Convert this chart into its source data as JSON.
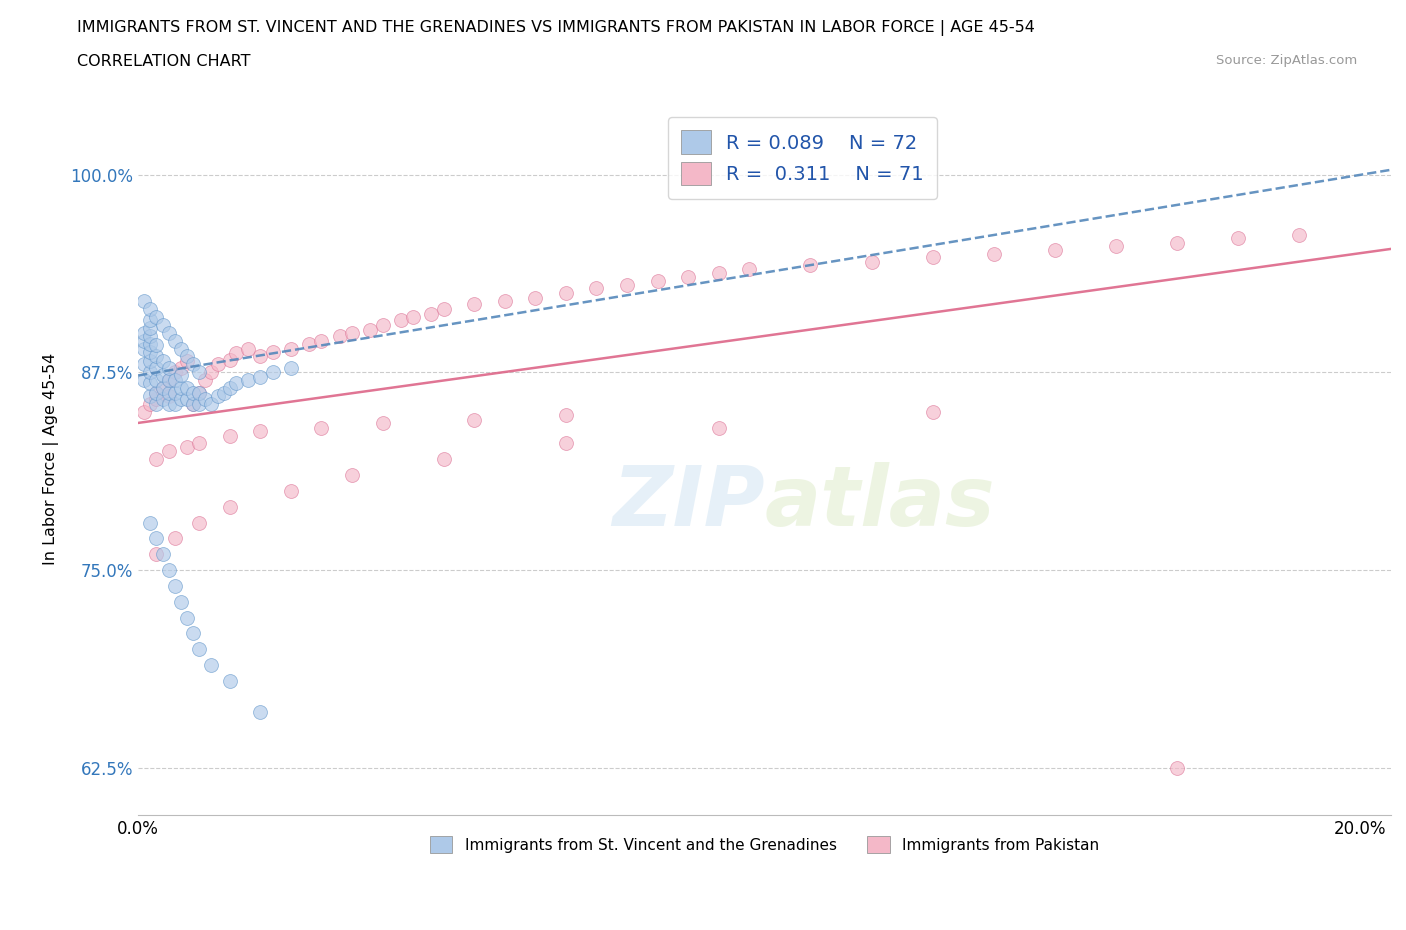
{
  "title_line1": "IMMIGRANTS FROM ST. VINCENT AND THE GRENADINES VS IMMIGRANTS FROM PAKISTAN IN LABOR FORCE | AGE 45-54",
  "title_line2": "CORRELATION CHART",
  "source_text": "Source: ZipAtlas.com",
  "ylabel": "In Labor Force | Age 45-54",
  "xlim": [
    0.0,
    0.205
  ],
  "ylim": [
    0.595,
    1.045
  ],
  "xticks": [
    0.0,
    0.025,
    0.05,
    0.075,
    0.1,
    0.125,
    0.15,
    0.175,
    0.2
  ],
  "xticklabels": [
    "0.0%",
    "",
    "",
    "",
    "",
    "",
    "",
    "",
    "20.0%"
  ],
  "yticks": [
    0.625,
    0.75,
    0.875,
    1.0
  ],
  "yticklabels": [
    "62.5%",
    "75.0%",
    "87.5%",
    "100.0%"
  ],
  "watermark_zip": "ZIP",
  "watermark_atlas": "atlas",
  "legend_r1": "0.089",
  "legend_n1": "72",
  "legend_r2": "0.311",
  "legend_n2": "71",
  "legend_label1": "Immigrants from St. Vincent and the Grenadines",
  "legend_label2": "Immigrants from Pakistan",
  "color_blue_fill": "#aec9e8",
  "color_blue_edge": "#6699cc",
  "color_pink_fill": "#f4b8c8",
  "color_pink_edge": "#dd7799",
  "color_blue_line": "#5588bb",
  "color_pink_line": "#dd6688",
  "color_axis_text": "#3377bb",
  "color_legend_text": "#2255aa",
  "trend_blue_y0": 0.873,
  "trend_blue_y1": 1.003,
  "trend_pink_y0": 0.843,
  "trend_pink_y1": 0.953,
  "scatter1_x": [
    0.001,
    0.001,
    0.001,
    0.001,
    0.001,
    0.002,
    0.002,
    0.002,
    0.002,
    0.002,
    0.002,
    0.002,
    0.002,
    0.002,
    0.003,
    0.003,
    0.003,
    0.003,
    0.003,
    0.003,
    0.004,
    0.004,
    0.004,
    0.004,
    0.005,
    0.005,
    0.005,
    0.005,
    0.006,
    0.006,
    0.006,
    0.007,
    0.007,
    0.007,
    0.008,
    0.008,
    0.009,
    0.009,
    0.01,
    0.01,
    0.011,
    0.012,
    0.013,
    0.014,
    0.015,
    0.016,
    0.018,
    0.02,
    0.022,
    0.025,
    0.001,
    0.002,
    0.003,
    0.004,
    0.005,
    0.006,
    0.007,
    0.008,
    0.009,
    0.01,
    0.002,
    0.003,
    0.004,
    0.005,
    0.006,
    0.007,
    0.008,
    0.009,
    0.01,
    0.012,
    0.015,
    0.02
  ],
  "scatter1_y": [
    0.87,
    0.88,
    0.89,
    0.895,
    0.9,
    0.86,
    0.868,
    0.875,
    0.882,
    0.888,
    0.893,
    0.898,
    0.903,
    0.908,
    0.855,
    0.862,
    0.87,
    0.878,
    0.885,
    0.892,
    0.858,
    0.865,
    0.873,
    0.882,
    0.855,
    0.862,
    0.87,
    0.878,
    0.855,
    0.862,
    0.87,
    0.858,
    0.865,
    0.873,
    0.858,
    0.865,
    0.855,
    0.862,
    0.855,
    0.862,
    0.858,
    0.855,
    0.86,
    0.862,
    0.865,
    0.868,
    0.87,
    0.872,
    0.875,
    0.878,
    0.92,
    0.915,
    0.91,
    0.905,
    0.9,
    0.895,
    0.89,
    0.885,
    0.88,
    0.875,
    0.78,
    0.77,
    0.76,
    0.75,
    0.74,
    0.73,
    0.72,
    0.71,
    0.7,
    0.69,
    0.68,
    0.66
  ],
  "scatter2_x": [
    0.001,
    0.002,
    0.003,
    0.003,
    0.004,
    0.005,
    0.005,
    0.006,
    0.007,
    0.008,
    0.009,
    0.01,
    0.011,
    0.012,
    0.013,
    0.015,
    0.016,
    0.018,
    0.02,
    0.022,
    0.025,
    0.028,
    0.03,
    0.033,
    0.035,
    0.038,
    0.04,
    0.043,
    0.045,
    0.048,
    0.05,
    0.055,
    0.06,
    0.065,
    0.07,
    0.075,
    0.08,
    0.085,
    0.09,
    0.095,
    0.1,
    0.11,
    0.12,
    0.13,
    0.14,
    0.15,
    0.16,
    0.17,
    0.18,
    0.19,
    0.003,
    0.005,
    0.008,
    0.01,
    0.015,
    0.02,
    0.03,
    0.04,
    0.055,
    0.07,
    0.003,
    0.006,
    0.01,
    0.015,
    0.025,
    0.035,
    0.05,
    0.07,
    0.095,
    0.13,
    0.17
  ],
  "scatter2_y": [
    0.85,
    0.855,
    0.858,
    0.862,
    0.865,
    0.86,
    0.87,
    0.875,
    0.878,
    0.882,
    0.855,
    0.862,
    0.87,
    0.875,
    0.88,
    0.883,
    0.887,
    0.89,
    0.885,
    0.888,
    0.89,
    0.893,
    0.895,
    0.898,
    0.9,
    0.902,
    0.905,
    0.908,
    0.91,
    0.912,
    0.915,
    0.918,
    0.92,
    0.922,
    0.925,
    0.928,
    0.93,
    0.933,
    0.935,
    0.938,
    0.94,
    0.943,
    0.945,
    0.948,
    0.95,
    0.952,
    0.955,
    0.957,
    0.96,
    0.962,
    0.82,
    0.825,
    0.828,
    0.83,
    0.835,
    0.838,
    0.84,
    0.843,
    0.845,
    0.848,
    0.76,
    0.77,
    0.78,
    0.79,
    0.8,
    0.81,
    0.82,
    0.83,
    0.84,
    0.85,
    0.625
  ]
}
